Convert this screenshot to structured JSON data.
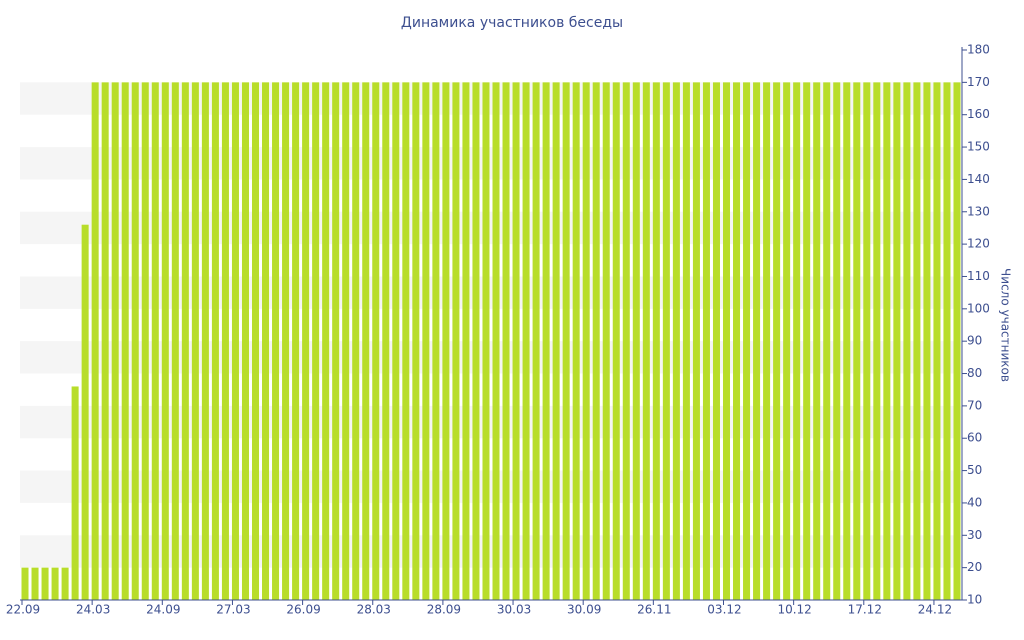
{
  "chart_data": {
    "type": "bar",
    "title": "Динамика участников беседы",
    "y_axis_label": "Число участников",
    "categories": [
      "22.09",
      null,
      null,
      null,
      null,
      null,
      null,
      "24.03",
      null,
      null,
      null,
      null,
      null,
      null,
      "24.09",
      null,
      null,
      null,
      null,
      null,
      null,
      "27.03",
      null,
      null,
      null,
      null,
      null,
      null,
      "26.09",
      null,
      null,
      null,
      null,
      null,
      null,
      "28.03",
      null,
      null,
      null,
      null,
      null,
      null,
      "28.09",
      null,
      null,
      null,
      null,
      null,
      null,
      "30.03",
      null,
      null,
      null,
      null,
      null,
      null,
      "30.09",
      null,
      null,
      null,
      null,
      null,
      null,
      "26.11",
      null,
      null,
      null,
      null,
      null,
      null,
      "03.12",
      null,
      null,
      null,
      null,
      null,
      null,
      "10.12",
      null,
      null,
      null,
      null,
      null,
      null,
      "17.12",
      null,
      null,
      null,
      null,
      null,
      null,
      "24.12",
      null,
      null
    ],
    "values": [
      20,
      20,
      20,
      20,
      20,
      76,
      126,
      170,
      170,
      170,
      170,
      170,
      170,
      170,
      170,
      170,
      170,
      170,
      170,
      170,
      170,
      170,
      170,
      170,
      170,
      170,
      170,
      170,
      170,
      170,
      170,
      170,
      170,
      170,
      170,
      170,
      170,
      170,
      170,
      170,
      170,
      170,
      170,
      170,
      170,
      170,
      170,
      170,
      170,
      170,
      170,
      170,
      170,
      170,
      170,
      170,
      170,
      170,
      170,
      170,
      170,
      170,
      170,
      170,
      170,
      170,
      170,
      170,
      170,
      170,
      170,
      170,
      170,
      170,
      170,
      170,
      170,
      170,
      170,
      170,
      170,
      170,
      170,
      170,
      170,
      170,
      170,
      170,
      170,
      170,
      170,
      170,
      170,
      170
    ],
    "color": "#b8dd2a",
    "ylim": [
      10,
      180
    ],
    "yticks": [
      10,
      20,
      30,
      40,
      50,
      60,
      70,
      80,
      90,
      100,
      110,
      120,
      130,
      140,
      150,
      160,
      170,
      180
    ],
    "y_axis_side": "right",
    "grid": "bands"
  }
}
